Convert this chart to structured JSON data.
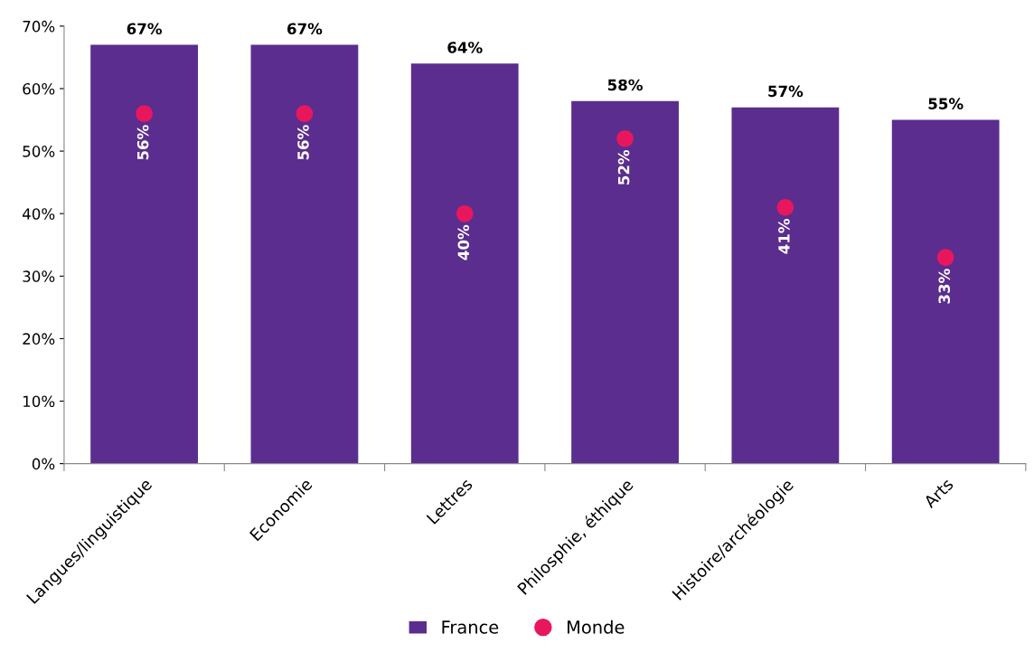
{
  "chart_data": {
    "type": "bar",
    "categories": [
      "Langues/linguistique",
      "Economie",
      "Lettres",
      "Philosphie, éthique",
      "Histoire/archéologie",
      "Arts"
    ],
    "series": [
      {
        "name": "France",
        "color": "#5b2d8e",
        "values": [
          67,
          67,
          64,
          58,
          57,
          55
        ],
        "value_labels": [
          "67%",
          "67%",
          "64%",
          "58%",
          "57%",
          "55%"
        ]
      },
      {
        "name": "Monde",
        "type": "scatter",
        "color": "#e8175d",
        "values": [
          56,
          56,
          40,
          52,
          41,
          33
        ],
        "value_labels": [
          "56%",
          "56%",
          "40%",
          "52%",
          "41%",
          "33%"
        ]
      }
    ],
    "ylim": [
      0,
      70
    ],
    "yticks": [
      {
        "value": 0,
        "label": "0%"
      },
      {
        "value": 10,
        "label": "10%"
      },
      {
        "value": 20,
        "label": "20%"
      },
      {
        "value": 30,
        "label": "30%"
      },
      {
        "value": 40,
        "label": "40%"
      },
      {
        "value": 50,
        "label": "50%"
      },
      {
        "value": 60,
        "label": "60%"
      },
      {
        "value": 70,
        "label": "70%"
      }
    ],
    "grid": false,
    "legend": "bottom",
    "marker": "circle"
  }
}
